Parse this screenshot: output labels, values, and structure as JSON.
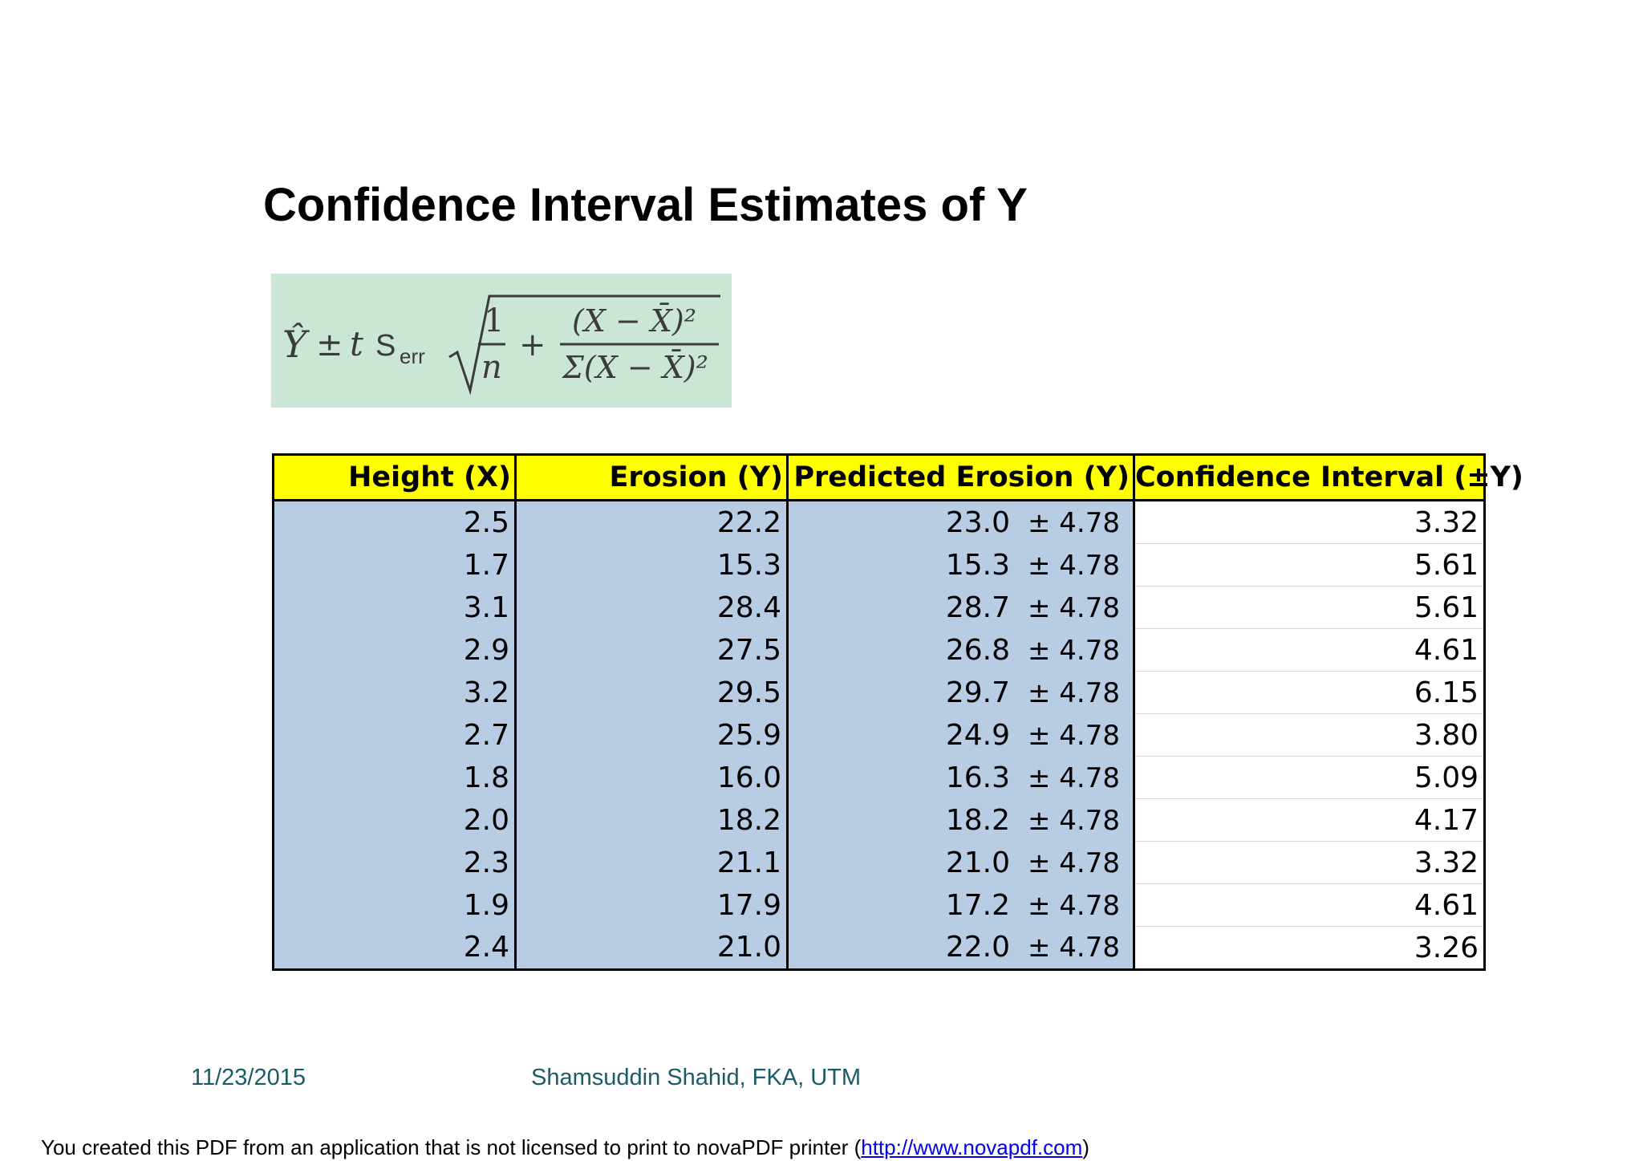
{
  "title": "Confidence Interval Estimates of Y",
  "formula": {
    "yhat": "Ŷ",
    "pm": "±",
    "t": "t",
    "s": "S",
    "err": "err",
    "one": "1",
    "n": "n",
    "plus": "+",
    "numerator": "(X − X̄)²",
    "denominator": "Σ(X − X̄)²"
  },
  "table": {
    "headers": [
      "Height (X)",
      "Erosion (Y)",
      "Predicted Erosion (Y)",
      "Confidence Interval (±Y)"
    ],
    "pm_label": "± 4.78",
    "rows": [
      {
        "height": "2.5",
        "erosion": "22.2",
        "predicted": "23.0",
        "ci": "3.32"
      },
      {
        "height": "1.7",
        "erosion": "15.3",
        "predicted": "15.3",
        "ci": "5.61"
      },
      {
        "height": "3.1",
        "erosion": "28.4",
        "predicted": "28.7",
        "ci": "5.61"
      },
      {
        "height": "2.9",
        "erosion": "27.5",
        "predicted": "26.8",
        "ci": "4.61"
      },
      {
        "height": "3.2",
        "erosion": "29.5",
        "predicted": "29.7",
        "ci": "6.15"
      },
      {
        "height": "2.7",
        "erosion": "25.9",
        "predicted": "24.9",
        "ci": "3.80"
      },
      {
        "height": "1.8",
        "erosion": "16.0",
        "predicted": "16.3",
        "ci": "5.09"
      },
      {
        "height": "2.0",
        "erosion": "18.2",
        "predicted": "18.2",
        "ci": "4.17"
      },
      {
        "height": "2.3",
        "erosion": "21.1",
        "predicted": "21.0",
        "ci": "3.32"
      },
      {
        "height": "1.9",
        "erosion": "17.9",
        "predicted": "17.2",
        "ci": "4.61"
      },
      {
        "height": "2.4",
        "erosion": "21.0",
        "predicted": "22.0",
        "ci": "3.26"
      }
    ]
  },
  "footer": {
    "date": "11/23/2015",
    "author": "Shamsuddin Shahid, FKA, UTM"
  },
  "notice": {
    "text_before": "You created this PDF from an application that is not licensed to print to novaPDF printer (",
    "link": "http://www.novapdf.com",
    "text_after": ")"
  },
  "colors": {
    "header_bg": "#ffff00",
    "cell_blue": "#b8cce4",
    "formula_bg": "#cce6d6",
    "footer_text": "#1a5c66"
  }
}
